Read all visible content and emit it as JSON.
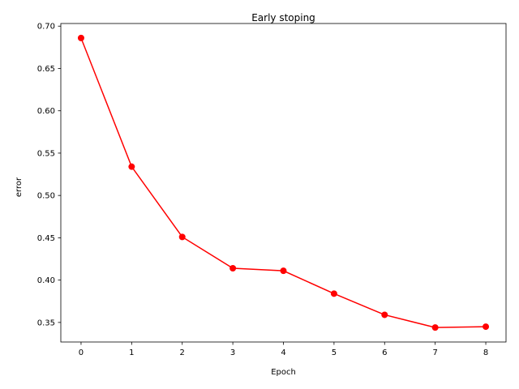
{
  "chart_data": {
    "type": "line",
    "title": "Early stoping",
    "xlabel": "Epoch",
    "ylabel": "error",
    "x": [
      0,
      1,
      2,
      3,
      4,
      5,
      6,
      7,
      8
    ],
    "series": [
      {
        "values": [
          0.686,
          0.534,
          0.451,
          0.414,
          0.411,
          0.384,
          0.359,
          0.344,
          0.345
        ],
        "color": "#ff0000",
        "marker": "circle"
      }
    ],
    "xticks": [
      0,
      1,
      2,
      3,
      4,
      5,
      6,
      7,
      8
    ],
    "yticks": [
      0.35,
      0.4,
      0.45,
      0.5,
      0.55,
      0.6,
      0.65,
      0.7
    ],
    "xlim": [
      -0.4,
      8.4
    ],
    "ylim": [
      0.3269,
      0.7031
    ],
    "grid": false,
    "legend": "none"
  }
}
